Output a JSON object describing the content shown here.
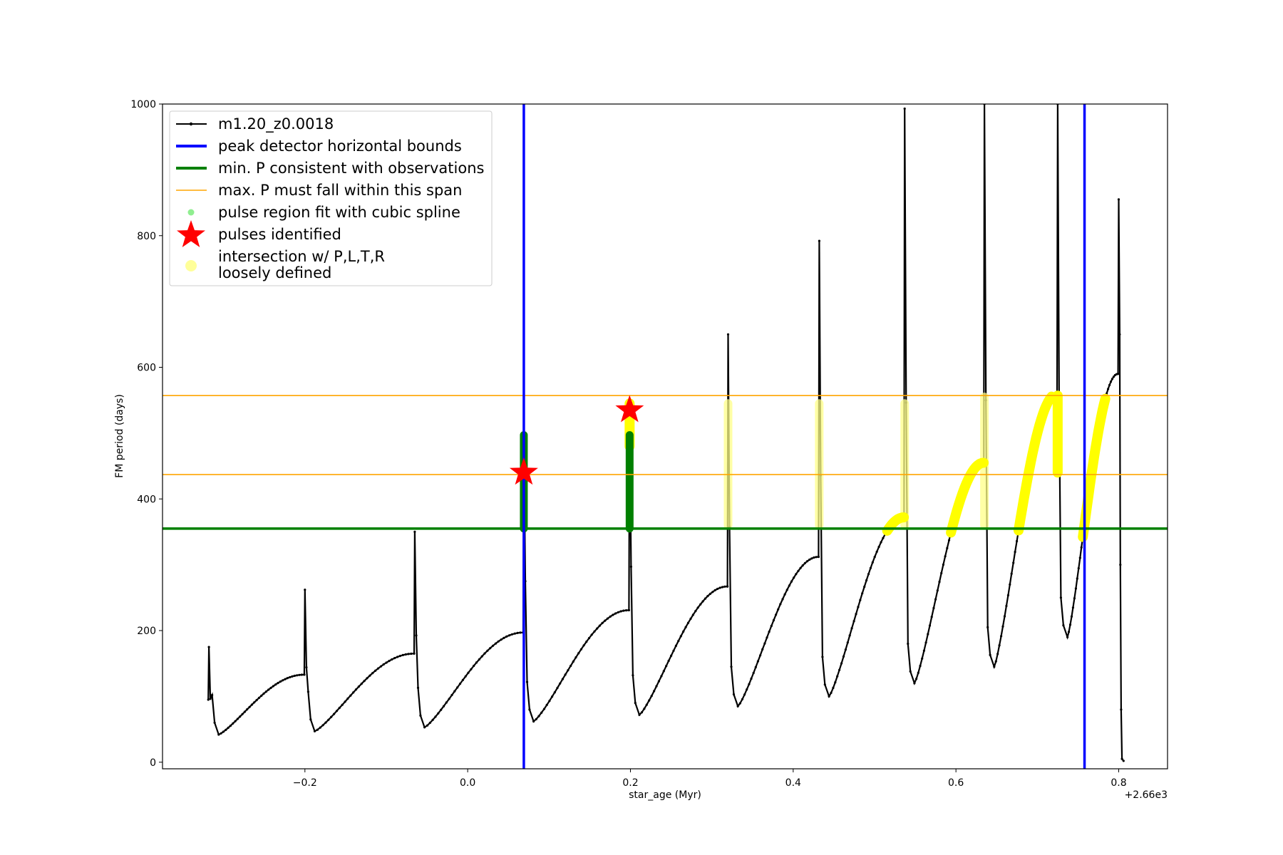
{
  "chart_data": {
    "type": "line",
    "title": "",
    "xlabel": "star_age (Myr)",
    "ylabel": "FM period (days)",
    "x_offset_label": "+2.66e3",
    "xlim": [
      -0.375,
      0.86
    ],
    "ylim": [
      -10,
      1000
    ],
    "xticks": [
      {
        "value": -0.2,
        "label": "−0.2"
      },
      {
        "value": 0.0,
        "label": "0.0"
      },
      {
        "value": 0.2,
        "label": "0.2"
      },
      {
        "value": 0.4,
        "label": "0.4"
      },
      {
        "value": 0.6,
        "label": "0.6"
      },
      {
        "value": 0.8,
        "label": "0.8"
      }
    ],
    "yticks": [
      {
        "value": 0,
        "label": "0"
      },
      {
        "value": 200,
        "label": "200"
      },
      {
        "value": 400,
        "label": "400"
      },
      {
        "value": 600,
        "label": "600"
      },
      {
        "value": 800,
        "label": "800"
      },
      {
        "value": 1000,
        "label": "1000"
      }
    ],
    "grid": false,
    "legend_position": "top-left",
    "legend": [
      {
        "label": "m1.20_z0.0018",
        "style": "line-marker",
        "color": "#000000"
      },
      {
        "label": "peak detector horizontal bounds",
        "style": "thick-line",
        "color": "#0000ff"
      },
      {
        "label": "min. P consistent with observations",
        "style": "thick-line",
        "color": "#008000"
      },
      {
        "label": "max. P must fall within this span",
        "style": "thin-line",
        "color": "#ffa500"
      },
      {
        "label": "pulse region fit with cubic spline",
        "style": "dot",
        "color": "#90ee90"
      },
      {
        "label": "pulses identified",
        "style": "star",
        "color": "#ff0000"
      },
      {
        "label": "intersection w/ P,L,T,R",
        "label2": "loosely defined",
        "style": "big-dot",
        "color": "#ffff99"
      }
    ],
    "vertical_lines": {
      "color": "#0000ff",
      "x": [
        0.069,
        0.758
      ]
    },
    "horizontal_lines": [
      {
        "y": 355,
        "color": "#008000",
        "kind": "min"
      },
      {
        "y": 437,
        "color": "#ffa500",
        "kind": "max-lower"
      },
      {
        "y": 557,
        "color": "#ffa500",
        "kind": "max-upper"
      }
    ],
    "pulses": [
      {
        "t": -0.318,
        "spike": 175,
        "min": 42,
        "peak": 133
      },
      {
        "t": -0.2,
        "spike": 262,
        "min": 47,
        "peak": 165
      },
      {
        "t": -0.065,
        "spike": 350,
        "min": 53,
        "peak": 197
      },
      {
        "t": 0.069,
        "spike": 500,
        "min": 62,
        "peak": 231
      },
      {
        "t": 0.199,
        "spike": 540,
        "min": 72,
        "peak": 267
      },
      {
        "t": 0.32,
        "spike": 650,
        "min": 85,
        "peak": 312
      },
      {
        "t": 0.432,
        "spike": 792,
        "min": 100,
        "peak": 372
      },
      {
        "t": 0.537,
        "spike": 993,
        "min": 120,
        "peak": 455
      },
      {
        "t": 0.635,
        "spike": 1000,
        "min": 145,
        "peak": 560
      },
      {
        "t": 0.725,
        "spike": 1000,
        "min": 190,
        "peak": 590
      },
      {
        "t": 0.8,
        "spike": 855,
        "min": 0,
        "peak": null
      }
    ],
    "end_x": 0.806,
    "green_segments": [
      {
        "x": 0.069,
        "y1": 355,
        "y2": 497
      },
      {
        "x": 0.199,
        "y1": 355,
        "y2": 497
      }
    ],
    "yellow_vertical": [
      {
        "x": 0.199,
        "y1": 480,
        "y2": 545,
        "faint": false
      },
      {
        "x": 0.32,
        "y1": 360,
        "y2": 545,
        "faint": true
      },
      {
        "x": 0.432,
        "y1": 360,
        "y2": 545,
        "faint": true
      },
      {
        "x": 0.537,
        "y1": 360,
        "y2": 545,
        "faint": true
      },
      {
        "x": 0.635,
        "y1": 360,
        "y2": 555,
        "faint": true
      },
      {
        "x": 0.725,
        "y1": 440,
        "y2": 557,
        "faint": false
      }
    ],
    "stars": [
      {
        "x": 0.069,
        "y": 440
      },
      {
        "x": 0.199,
        "y": 535
      }
    ]
  }
}
